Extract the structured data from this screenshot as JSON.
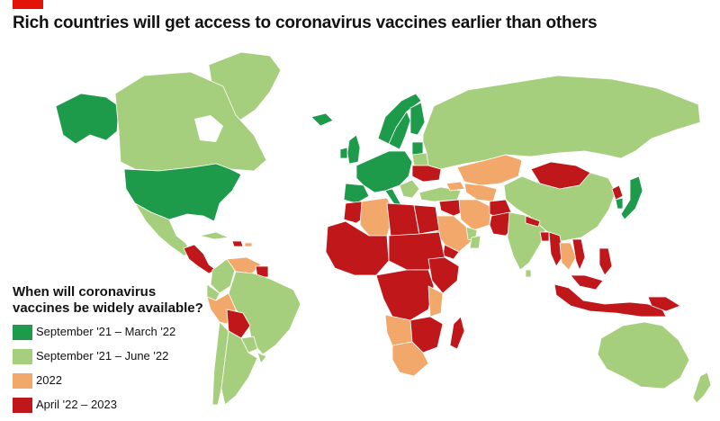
{
  "header": {
    "title": "Rich countries will get access to coronavirus vaccines earlier than others",
    "accent_color": "#e3120b"
  },
  "legend": {
    "title": "When will coronavirus\nvaccines be widely available?",
    "items": [
      {
        "label": "September '21 – March '22",
        "color": "#1e9a4b"
      },
      {
        "label": "September '21 – June '22",
        "color": "#a6cf7d"
      },
      {
        "label": "2022",
        "color": "#f2a86a"
      },
      {
        "label": "April '22 – 2023",
        "color": "#c0171b"
      }
    ]
  },
  "map": {
    "projection": "world choropleth",
    "background_color": "#ffffff",
    "border_color": "#ffffff",
    "categories": {
      "sep21_mar22": "September '21 – March '22",
      "sep21_jun22": "September '21 – June '22",
      "y2022": "2022",
      "apr22_2023": "April '22 – 2023"
    }
  }
}
